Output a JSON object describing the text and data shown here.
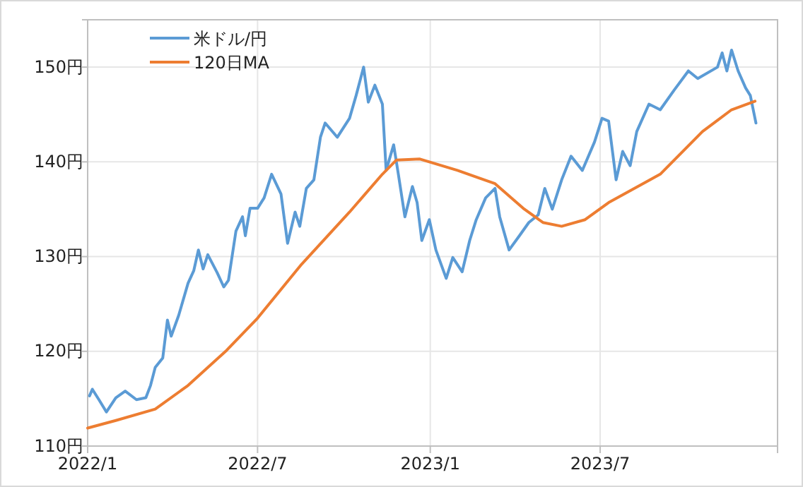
{
  "chart_data": {
    "type": "line",
    "xlim": [
      "2022-01-01",
      "2024-01-06"
    ],
    "xticks": [
      {
        "value": "2022-01-01",
        "label": "2022/1"
      },
      {
        "value": "2022-07-01",
        "label": "2022/7"
      },
      {
        "value": "2023-01-01",
        "label": "2023/1"
      },
      {
        "value": "2023-07-01",
        "label": "2023/7"
      }
    ],
    "ylim": [
      110,
      155
    ],
    "yticks": [
      {
        "value": 110,
        "label": "110円"
      },
      {
        "value": 120,
        "label": "120円"
      },
      {
        "value": 130,
        "label": "130円"
      },
      {
        "value": 140,
        "label": "140円"
      },
      {
        "value": 150,
        "label": "150円"
      }
    ],
    "grid": true,
    "legend": "top left",
    "marker": "none",
    "line_style": "solid",
    "series": [
      {
        "name": "米ドル/円",
        "color": "#5b9bd5",
        "x": [
          "2022-01-03",
          "2022-01-06",
          "2022-01-13",
          "2022-01-21",
          "2022-01-31",
          "2022-02-10",
          "2022-02-22",
          "2022-03-04",
          "2022-03-09",
          "2022-03-14",
          "2022-03-22",
          "2022-03-27",
          "2022-03-31",
          "2022-04-08",
          "2022-04-18",
          "2022-04-24",
          "2022-04-29",
          "2022-05-04",
          "2022-05-09",
          "2022-05-19",
          "2022-05-26",
          "2022-05-31",
          "2022-06-08",
          "2022-06-15",
          "2022-06-18",
          "2022-06-23",
          "2022-07-01",
          "2022-07-08",
          "2022-07-16",
          "2022-07-26",
          "2022-08-02",
          "2022-08-10",
          "2022-08-15",
          "2022-08-22",
          "2022-08-30",
          "2022-09-06",
          "2022-09-11",
          "2022-09-24",
          "2022-10-07",
          "2022-10-14",
          "2022-10-22",
          "2022-10-27",
          "2022-11-03",
          "2022-11-11",
          "2022-11-15",
          "2022-11-23",
          "2022-11-28",
          "2022-12-05",
          "2022-12-13",
          "2022-12-18",
          "2022-12-23",
          "2022-12-31",
          "2023-01-07",
          "2023-01-18",
          "2023-01-25",
          "2023-02-04",
          "2023-02-12",
          "2023-02-19",
          "2023-03-01",
          "2023-03-11",
          "2023-03-16",
          "2023-03-26",
          "2023-04-06",
          "2023-04-16",
          "2023-04-26",
          "2023-05-03",
          "2023-05-11",
          "2023-05-21",
          "2023-05-31",
          "2023-06-12",
          "2023-06-25",
          "2023-07-03",
          "2023-07-10",
          "2023-07-18",
          "2023-07-25",
          "2023-08-02",
          "2023-08-09",
          "2023-08-22",
          "2023-09-03",
          "2023-09-18",
          "2023-10-03",
          "2023-10-13",
          "2023-11-03",
          "2023-11-08",
          "2023-11-13",
          "2023-11-18",
          "2023-11-25",
          "2023-12-03",
          "2023-12-08",
          "2023-12-14"
        ],
        "values": [
          115.3,
          116.0,
          114.9,
          113.6,
          115.1,
          115.8,
          114.9,
          115.1,
          116.4,
          118.3,
          119.3,
          123.3,
          121.6,
          123.8,
          127.2,
          128.5,
          130.7,
          128.7,
          130.2,
          128.3,
          126.8,
          127.5,
          132.7,
          134.2,
          132.2,
          135.1,
          135.1,
          136.2,
          138.7,
          136.6,
          131.4,
          134.7,
          133.2,
          137.2,
          138.1,
          142.6,
          144.1,
          142.6,
          144.6,
          147.0,
          150.0,
          146.3,
          148.1,
          146.1,
          139.1,
          141.8,
          138.7,
          134.2,
          137.4,
          135.7,
          131.7,
          133.9,
          130.7,
          127.7,
          129.9,
          128.4,
          131.7,
          133.9,
          136.2,
          137.2,
          134.2,
          130.7,
          132.2,
          133.6,
          134.4,
          137.2,
          135.0,
          138.1,
          140.6,
          139.1,
          142.1,
          144.6,
          144.3,
          138.1,
          141.1,
          139.6,
          143.2,
          146.1,
          145.5,
          147.6,
          149.6,
          148.8,
          150.0,
          151.5,
          149.6,
          151.8,
          149.6,
          147.8,
          147.0,
          144.1
        ]
      },
      {
        "name": "120日MA",
        "color": "#ed7d31",
        "x": [
          "2022-01-01",
          "2022-01-31",
          "2022-03-14",
          "2022-04-18",
          "2022-05-29",
          "2022-07-01",
          "2022-08-17",
          "2022-10-07",
          "2022-11-11",
          "2022-11-26",
          "2022-12-21",
          "2023-01-30",
          "2023-03-11",
          "2023-04-10",
          "2023-05-01",
          "2023-05-21",
          "2023-06-15",
          "2023-07-10",
          "2023-09-03",
          "2023-10-18",
          "2023-11-18",
          "2023-12-13"
        ],
        "values": [
          111.9,
          112.7,
          113.9,
          116.4,
          120.1,
          123.5,
          129.2,
          134.7,
          138.7,
          140.2,
          140.3,
          139.1,
          137.7,
          135.1,
          133.6,
          133.2,
          133.9,
          135.7,
          138.7,
          143.2,
          145.5,
          146.4
        ]
      }
    ]
  }
}
